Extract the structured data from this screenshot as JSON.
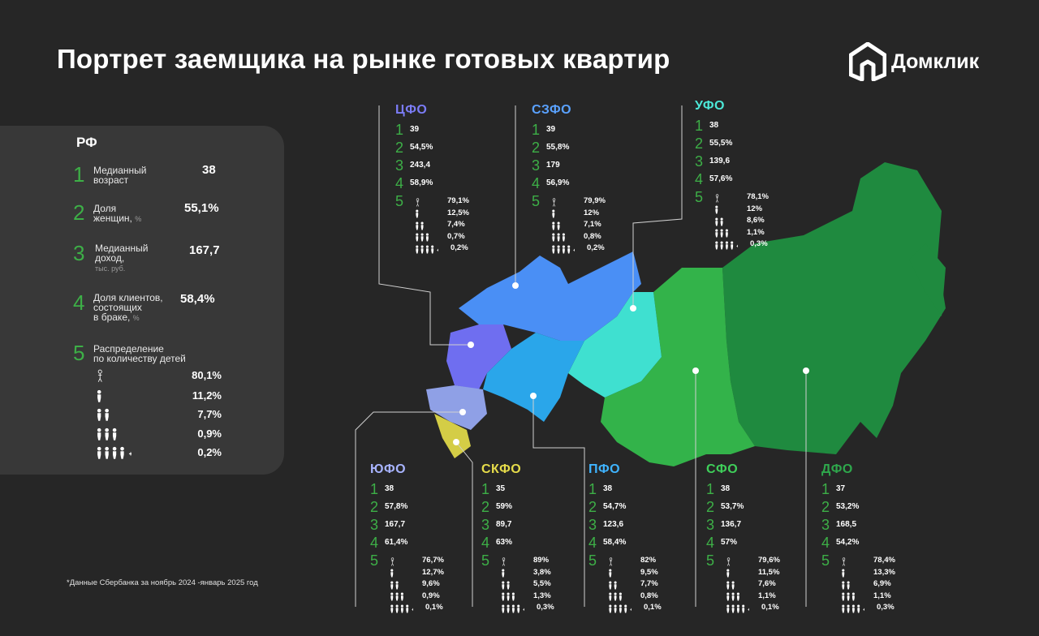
{
  "title": "Портрет заемщика на рынке готовых квартир",
  "brand": "Домклик",
  "colors": {
    "accent_green": "#3daf47",
    "cfo": "#6f6ef0",
    "szfo": "#4a8ff5",
    "ufo": "#3fe0d0"
  },
  "rf": {
    "title": "РФ",
    "rows": [
      {
        "n": "1",
        "label1": "Медианный",
        "label2": "возраст",
        "label3": "",
        "value": "38"
      },
      {
        "n": "2",
        "label1": "Доля",
        "label2": "женщин,",
        "unit": "%",
        "value": "55,1%"
      },
      {
        "n": "3",
        "label1": "Медианный",
        "label2": "доход,",
        "label3": "тыс. руб.",
        "value": "167,7"
      },
      {
        "n": "4",
        "label1": "Доля клиентов,",
        "label2": "состоящих",
        "label3": "в браке,",
        "unit": "%",
        "value": "58,4%"
      },
      {
        "n": "5",
        "label1": "Распределение",
        "label2": "по количеству детей"
      }
    ],
    "kids": [
      "80,1%",
      "11,2%",
      "7,7%",
      "0,9%",
      "0,2%"
    ]
  },
  "districts": [
    {
      "name": "ЦФО",
      "vals": [
        "39",
        "54,5%",
        "243,4",
        "58,9%"
      ],
      "kids": [
        "79,1%",
        "12,5%",
        "7,4%",
        "0,7%",
        "0,2%"
      ]
    },
    {
      "name": "СЗФО",
      "vals": [
        "39",
        "55,8%",
        "179",
        "56,9%"
      ],
      "kids": [
        "79,9%",
        "12%",
        "7,1%",
        "0,8%",
        "0,2%"
      ]
    },
    {
      "name": "УФО",
      "vals": [
        "38",
        "55,5%",
        "139,6",
        "57,6%"
      ],
      "kids": [
        "78,1%",
        "12%",
        "8,6%",
        "1,1%",
        "0,3%"
      ]
    },
    {
      "name": "ЮФО",
      "vals": [
        "38",
        "57,8%",
        "167,7",
        "61,4%"
      ],
      "kids": [
        "76,7%",
        "12,7%",
        "9,6%",
        "0,9%",
        "0,1%"
      ]
    },
    {
      "name": "СКФО",
      "vals": [
        "35",
        "59%",
        "89,7",
        "63%"
      ],
      "kids": [
        "89%",
        "3,8%",
        "5,5%",
        "1,3%",
        "0,3%"
      ]
    },
    {
      "name": "ПФО",
      "vals": [
        "38",
        "54,7%",
        "123,6",
        "58,4%"
      ],
      "kids": [
        "82%",
        "9,5%",
        "7,7%",
        "0,8%",
        "0,1%"
      ]
    },
    {
      "name": "СФО",
      "vals": [
        "38",
        "53,7%",
        "136,7",
        "57%"
      ],
      "kids": [
        "79,6%",
        "11,5%",
        "7,6%",
        "1,1%",
        "0,1%"
      ]
    },
    {
      "name": "ДФО",
      "vals": [
        "37",
        "53,2%",
        "168,5",
        "54,2%"
      ],
      "kids": [
        "78,4%",
        "13,3%",
        "6,9%",
        "1,1%",
        "0,3%"
      ]
    }
  ],
  "nums": [
    "1",
    "2",
    "3",
    "4",
    "5"
  ],
  "note": "*Данные Сбербанка за ноябрь 2024 -январь 2025 год",
  "icons": [
    "no-children-icon",
    "one-child-icon",
    "two-children-icon",
    "three-children-icon",
    "four-plus-children-icon",
    "domclick-logo-icon",
    "russia-map"
  ]
}
